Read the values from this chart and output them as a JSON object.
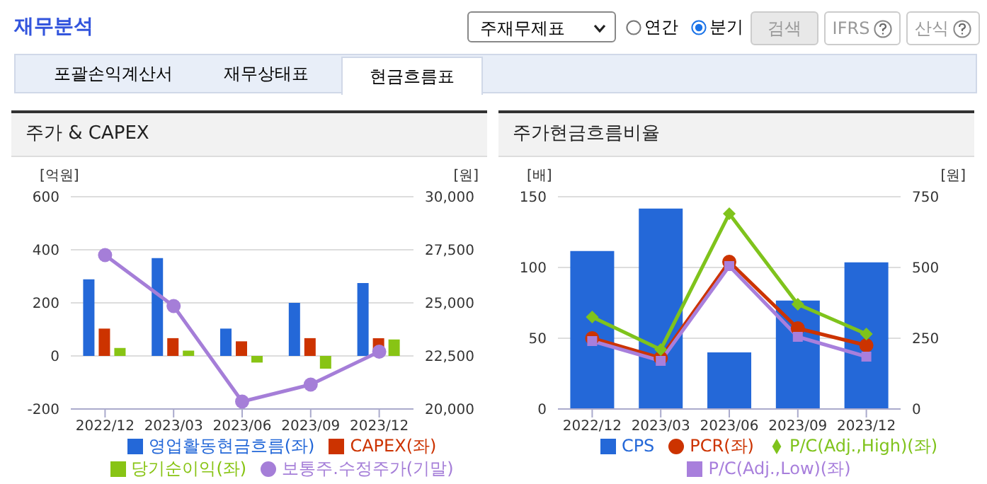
{
  "chart_data": [
    {
      "type": "bar",
      "title": "주가 & CAPEX",
      "ylabel": "[억원]",
      "y2label": "[원]",
      "annotations": [
        "재무분석",
        "주재무제표",
        "연간",
        "분기",
        "검색",
        "IFRS",
        "산식",
        "포괄손익계산서",
        "재무상태표",
        "현금흐름표"
      ],
      "categories": [
        "2022/12",
        "2023/03",
        "2023/06",
        "2023/09",
        "2023/12"
      ],
      "series": [
        {
          "name": "영업활동현금흐름(좌)",
          "color": "#2468d8",
          "values": [
            289,
            369,
            103,
            200,
            275
          ]
        },
        {
          "name": "CAPEX(좌)",
          "color": "#cc3300",
          "values": [
            103,
            67,
            55,
            67,
            67
          ]
        },
        {
          "name": "당기순이익(좌)",
          "color": "#88c414",
          "values": [
            30,
            20,
            -25,
            -48,
            62
          ]
        },
        {
          "name": "보통주.수정주가(기말)",
          "type": "line",
          "axis": "y2",
          "color": "#a57ed8",
          "values": [
            27250,
            24850,
            20350,
            21150,
            22700
          ]
        }
      ],
      "ylim": [
        -200,
        600
      ],
      "yticks": [
        -200,
        0,
        200,
        400,
        600
      ],
      "y2lim": [
        20000,
        30000
      ],
      "y2ticks": [
        {
          "value": 20000,
          "label": "20,000"
        },
        {
          "value": 22500,
          "label": "22,500"
        },
        {
          "value": 25000,
          "label": "25,000"
        },
        {
          "value": 27500,
          "label": "27,500"
        },
        {
          "value": 30000,
          "label": "30,000"
        }
      ],
      "grid": "y",
      "legend": "bottom",
      "marker": "circle"
    },
    {
      "type": "bar",
      "title": "주가현금흐름비율",
      "ylabel": "[배]",
      "y2label": "[원]",
      "categories": [
        "2022/12",
        "2023/03",
        "2023/06",
        "2023/09",
        "2023/12"
      ],
      "series": [
        {
          "name": "CPS",
          "color": "#2468d8",
          "axis": "y2",
          "values": [
            558,
            708,
            200,
            383,
            518
          ]
        },
        {
          "name": "PCR(좌)",
          "type": "line",
          "color": "#cc3300",
          "marker": "circle",
          "values": [
            50,
            36,
            104,
            57,
            45
          ]
        },
        {
          "name": "P/C(Adj.,High)(좌)",
          "type": "line",
          "color": "#7fc31c",
          "marker": "diamond",
          "values": [
            65,
            42,
            138,
            74,
            53
          ]
        },
        {
          "name": "P/C(Adj.,Low)(좌)",
          "type": "line",
          "color": "#a87fdc",
          "marker": "square",
          "values": [
            48,
            34,
            101,
            51,
            37
          ]
        }
      ],
      "ylim": [
        0,
        150
      ],
      "yticks": [
        0,
        50,
        100,
        150
      ],
      "y2lim": [
        0,
        750
      ],
      "y2ticks": [
        0,
        250,
        500,
        750
      ],
      "grid": "y",
      "legend": "bottom"
    }
  ]
}
